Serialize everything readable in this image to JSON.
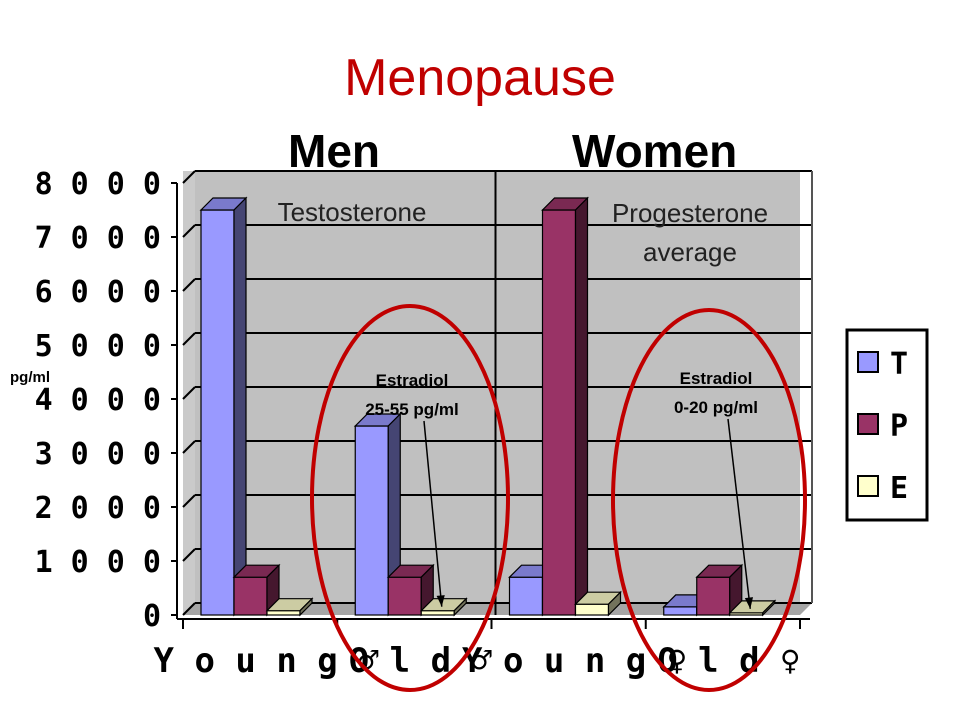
{
  "page": {
    "title": "Menopause",
    "group_men": "Men",
    "group_women": "Women"
  },
  "chart_data": {
    "type": "bar",
    "title": "Menopause",
    "ylabel": "pg/ml",
    "ylim": [
      0,
      8000
    ],
    "yticks": [
      0,
      1000,
      2000,
      3000,
      4000,
      5000,
      6000,
      7000,
      8000
    ],
    "categories": [
      "Young ♂",
      "Old ♂",
      "Young ♀",
      "Old ♀"
    ],
    "series": [
      {
        "name": "T",
        "color": "#9999ff",
        "values": [
          7500,
          3500,
          700,
          150
        ]
      },
      {
        "name": "P",
        "color": "#993366",
        "values": [
          700,
          700,
          7500,
          700
        ]
      },
      {
        "name": "E",
        "color": "#ffffcc",
        "values": [
          80,
          80,
          200,
          40
        ]
      }
    ],
    "in_chart_labels": {
      "men": "Testosterone",
      "women_line1": "Progesterone",
      "women_line2": "average"
    },
    "annotations": [
      {
        "line1": "Estradiol",
        "line2": "25-55 pg/ml",
        "target_category": 1
      },
      {
        "line1": "Estradiol",
        "line2": "0-20 pg/ml",
        "target_category": 3
      }
    ],
    "legend_position": "right",
    "grid": true,
    "highlight_color": "#c00000"
  }
}
